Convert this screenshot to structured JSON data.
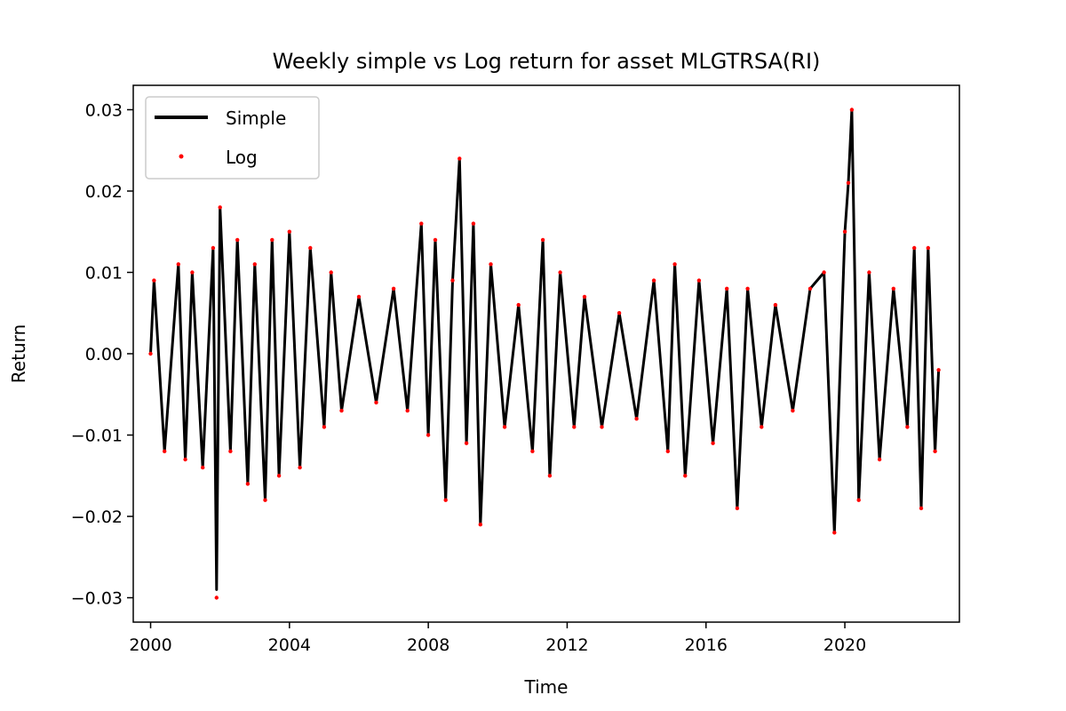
{
  "chart_data": {
    "type": "line",
    "title": "Weekly simple vs Log return for asset MLGTRSA(RI)",
    "xlabel": "Time",
    "ylabel": "Return",
    "xlim": [
      1999.5,
      2023.3
    ],
    "ylim": [
      -0.033,
      0.033
    ],
    "x_ticks": [
      2000,
      2004,
      2008,
      2012,
      2016,
      2020
    ],
    "x_tick_labels": [
      "2000",
      "2004",
      "2008",
      "2012",
      "2016",
      "2020"
    ],
    "y_ticks": [
      -0.03,
      -0.02,
      -0.01,
      0.0,
      0.01,
      0.02,
      0.03
    ],
    "y_tick_labels": [
      "−0.03",
      "−0.02",
      "−0.01",
      "0.00",
      "0.01",
      "0.02",
      "0.03"
    ],
    "legend": {
      "position": "upper-left",
      "entries": [
        "Simple",
        "Log"
      ]
    },
    "grid": false,
    "series": [
      {
        "name": "Simple",
        "style": "line",
        "color": "#000000",
        "x": [
          2000.0,
          2000.1,
          2000.4,
          2000.8,
          2001.0,
          2001.2,
          2001.5,
          2001.8,
          2001.9,
          2002.0,
          2002.3,
          2002.5,
          2002.8,
          2003.0,
          2003.3,
          2003.5,
          2003.7,
          2004.0,
          2004.3,
          2004.6,
          2005.0,
          2005.2,
          2005.5,
          2006.0,
          2006.5,
          2007.0,
          2007.4,
          2007.8,
          2008.0,
          2008.2,
          2008.5,
          2008.7,
          2008.9,
          2009.1,
          2009.3,
          2009.5,
          2009.8,
          2010.2,
          2010.6,
          2011.0,
          2011.3,
          2011.5,
          2011.8,
          2012.2,
          2012.5,
          2013.0,
          2013.5,
          2014.0,
          2014.5,
          2014.9,
          2015.1,
          2015.4,
          2015.8,
          2016.2,
          2016.6,
          2016.9,
          2017.2,
          2017.6,
          2018.0,
          2018.5,
          2019.0,
          2019.4,
          2019.7,
          2020.0,
          2020.1,
          2020.2,
          2020.4,
          2020.7,
          2021.0,
          2021.4,
          2021.8,
          2022.0,
          2022.2,
          2022.4,
          2022.6,
          2022.7
        ],
        "y": [
          0.0,
          0.009,
          -0.012,
          0.011,
          -0.013,
          0.01,
          -0.014,
          0.013,
          -0.029,
          0.018,
          -0.012,
          0.014,
          -0.016,
          0.011,
          -0.018,
          0.014,
          -0.015,
          0.015,
          -0.014,
          0.013,
          -0.009,
          0.01,
          -0.007,
          0.007,
          -0.006,
          0.008,
          -0.007,
          0.016,
          -0.01,
          0.014,
          -0.018,
          0.009,
          0.024,
          -0.011,
          0.016,
          -0.021,
          0.011,
          -0.009,
          0.006,
          -0.012,
          0.014,
          -0.015,
          0.01,
          -0.009,
          0.007,
          -0.009,
          0.005,
          -0.008,
          0.009,
          -0.012,
          0.011,
          -0.015,
          0.009,
          -0.011,
          0.008,
          -0.019,
          0.008,
          -0.009,
          0.006,
          -0.007,
          0.008,
          0.01,
          -0.022,
          0.015,
          0.021,
          0.03,
          -0.018,
          0.01,
          -0.013,
          0.008,
          -0.009,
          0.013,
          -0.019,
          0.013,
          -0.012,
          -0.002
        ]
      },
      {
        "name": "Log",
        "style": "markers",
        "color": "#ff0000",
        "x": [
          2000.0,
          2000.1,
          2000.4,
          2000.8,
          2001.0,
          2001.2,
          2001.5,
          2001.8,
          2001.9,
          2002.0,
          2002.3,
          2002.5,
          2002.8,
          2003.0,
          2003.3,
          2003.5,
          2003.7,
          2004.0,
          2004.3,
          2004.6,
          2005.0,
          2005.2,
          2005.5,
          2006.0,
          2006.5,
          2007.0,
          2007.4,
          2007.8,
          2008.0,
          2008.2,
          2008.5,
          2008.7,
          2008.9,
          2009.1,
          2009.3,
          2009.5,
          2009.8,
          2010.2,
          2010.6,
          2011.0,
          2011.3,
          2011.5,
          2011.8,
          2012.2,
          2012.5,
          2013.0,
          2013.5,
          2014.0,
          2014.5,
          2014.9,
          2015.1,
          2015.4,
          2015.8,
          2016.2,
          2016.6,
          2016.9,
          2017.2,
          2017.6,
          2018.0,
          2018.5,
          2019.0,
          2019.4,
          2019.7,
          2020.0,
          2020.1,
          2020.2,
          2020.4,
          2020.7,
          2021.0,
          2021.4,
          2021.8,
          2022.0,
          2022.2,
          2022.4,
          2022.6,
          2022.7
        ],
        "y": [
          0.0,
          0.009,
          -0.012,
          0.011,
          -0.013,
          0.01,
          -0.014,
          0.013,
          -0.03,
          0.018,
          -0.012,
          0.014,
          -0.016,
          0.011,
          -0.018,
          0.014,
          -0.015,
          0.015,
          -0.014,
          0.013,
          -0.009,
          0.01,
          -0.007,
          0.007,
          -0.006,
          0.008,
          -0.007,
          0.016,
          -0.01,
          0.014,
          -0.018,
          0.009,
          0.024,
          -0.011,
          0.016,
          -0.021,
          0.011,
          -0.009,
          0.006,
          -0.012,
          0.014,
          -0.015,
          0.01,
          -0.009,
          0.007,
          -0.009,
          0.005,
          -0.008,
          0.009,
          -0.012,
          0.011,
          -0.015,
          0.009,
          -0.011,
          0.008,
          -0.019,
          0.008,
          -0.009,
          0.006,
          -0.007,
          0.008,
          0.01,
          -0.022,
          0.015,
          0.021,
          0.03,
          -0.018,
          0.01,
          -0.013,
          0.008,
          -0.009,
          0.013,
          -0.019,
          0.013,
          -0.012,
          -0.002
        ]
      }
    ]
  }
}
